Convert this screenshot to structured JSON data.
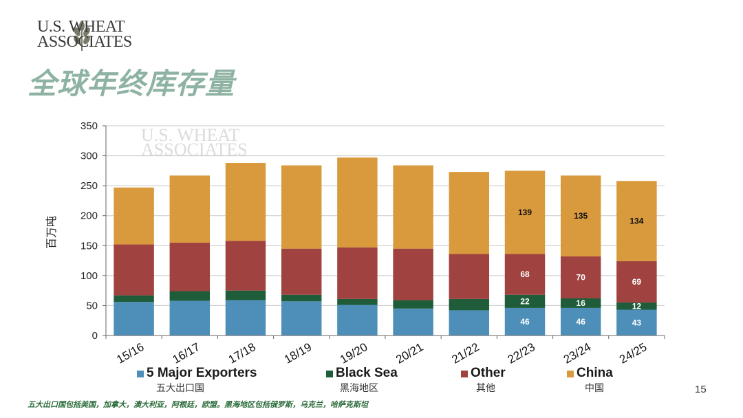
{
  "logo": {
    "line1": "U.S. WHEAT",
    "line2": "ASSOCIATES",
    "icon": "wheat-icon"
  },
  "watermark": {
    "line1": "U.S. WHEAT",
    "line2": "ASSOCIATES"
  },
  "title": "全球年终库存量",
  "chart_data": {
    "type": "bar",
    "stacked": true,
    "categories": [
      "15/16",
      "16/17",
      "17/18",
      "18/19",
      "19/20",
      "20/21",
      "21/22",
      "22/23",
      "23/24",
      "24/25"
    ],
    "ylabel": "百万吨",
    "ylim": [
      0,
      350
    ],
    "yticks": [
      0,
      50,
      100,
      150,
      200,
      250,
      300,
      350
    ],
    "grid": true,
    "series": [
      {
        "name": "5 Major Exporters",
        "sub": "五大出口国",
        "color": "#4d8fb8",
        "values": [
          56,
          58,
          59,
          57,
          51,
          45,
          42,
          46,
          46,
          43
        ],
        "labels": [
          "",
          "",
          "",
          "",
          "",
          "",
          "",
          "46",
          "46",
          "43"
        ]
      },
      {
        "name": "Black Sea",
        "sub": "黑海地区",
        "color": "#1f5c3a",
        "values": [
          11,
          16,
          16,
          11,
          10,
          14,
          19,
          22,
          16,
          12
        ],
        "labels": [
          "",
          "",
          "",
          "",
          "",
          "",
          "",
          "22",
          "16",
          "12"
        ]
      },
      {
        "name": "Other",
        "sub": "其他",
        "color": "#a0423f",
        "values": [
          85,
          81,
          83,
          77,
          86,
          86,
          75,
          68,
          70,
          69
        ],
        "labels": [
          "",
          "",
          "",
          "",
          "",
          "",
          "",
          "68",
          "70",
          "69"
        ]
      },
      {
        "name": "China",
        "sub": "中国",
        "color": "#d99a3e",
        "values": [
          95,
          112,
          130,
          139,
          150,
          139,
          137,
          139,
          135,
          134
        ],
        "labels": [
          "",
          "",
          "",
          "",
          "",
          "",
          "",
          "139",
          "135",
          "134"
        ]
      }
    ]
  },
  "footnote": "五大出口国包括美国，加拿大，澳大利亚，阿根廷，欧盟。黑海地区包括俄罗斯，乌克兰，哈萨克斯坦",
  "page_number": "15"
}
